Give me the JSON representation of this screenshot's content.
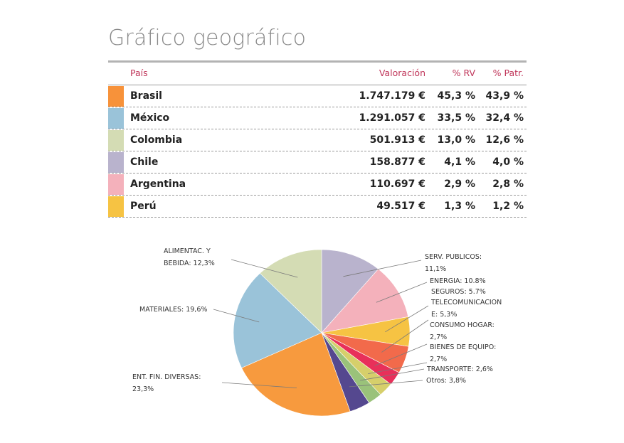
{
  "title": "Gráfico geográfico",
  "table": {
    "headers": {
      "pais": "País",
      "valoracion": "Valoración",
      "rv": "% RV",
      "patr": "% Patr."
    },
    "rows": [
      {
        "pais": "Brasil",
        "valoracion": "1.747.179 €",
        "rv": "45,3 %",
        "patr": "43,9 %",
        "color": "#f7923a"
      },
      {
        "pais": "México",
        "valoracion": "1.291.057 €",
        "rv": "33,5 %",
        "patr": "32,4 %",
        "color": "#9ac3d9"
      },
      {
        "pais": "Colombia",
        "valoracion": "501.913 €",
        "rv": "13,0 %",
        "patr": "12,6 %",
        "color": "#d4dcb4"
      },
      {
        "pais": "Chile",
        "valoracion": "158.877 €",
        "rv": "4,1 %",
        "patr": "4,0 %",
        "color": "#b9b3cd"
      },
      {
        "pais": "Argentina",
        "valoracion": "110.697 €",
        "rv": "2,9 %",
        "patr": "2,8 %",
        "color": "#f4b1bb"
      },
      {
        "pais": "Perú",
        "valoracion": "49.517 €",
        "rv": "1,3 %",
        "patr": "1,2 %",
        "color": "#f6c343"
      }
    ]
  },
  "chart_data": {
    "type": "pie",
    "slices": [
      {
        "label_lines": [
          "SERV. PUBLICOS:",
          "11,1%"
        ],
        "value": 11.1,
        "color": "#b9b3cd"
      },
      {
        "label_lines": [
          "ENERGIA: 10.8%"
        ],
        "value": 10.8,
        "color": "#f4b1bb"
      },
      {
        "label_lines": [
          "SEGUROS: 5.7%"
        ],
        "value": 5.7,
        "color": "#f6c343"
      },
      {
        "label_lines": [
          "TELECOMUNICACION",
          "E: 5,3%"
        ],
        "value": 5.3,
        "color": "#f26a4b"
      },
      {
        "label_lines": [
          "CONSUMO HOGAR:",
          "2,7%"
        ],
        "value": 2.7,
        "color": "#e8305a"
      },
      {
        "label_lines": [
          "BIENES DE EQUIPO:",
          "2,7%"
        ],
        "value": 2.7,
        "color": "#d6cf6b"
      },
      {
        "label_lines": [
          "TRANSPORTE: 2,6%"
        ],
        "value": 2.6,
        "color": "#9ac27a"
      },
      {
        "label_lines": [
          "Otros: 3,8%"
        ],
        "value": 3.8,
        "color": "#55488f"
      },
      {
        "label_lines": [
          "ENT. FIN. DIVERSAS:",
          "23,3%"
        ],
        "value": 23.3,
        "color": "#f79a3e"
      },
      {
        "label_lines": [
          "MATERIALES: 19,6%"
        ],
        "value": 19.6,
        "color": "#9ac3d9"
      },
      {
        "label_lines": [
          "ALIMENTAC. Y",
          "BEBIDA: 12,3%"
        ],
        "value": 12.3,
        "color": "#d4dcb4"
      }
    ]
  }
}
